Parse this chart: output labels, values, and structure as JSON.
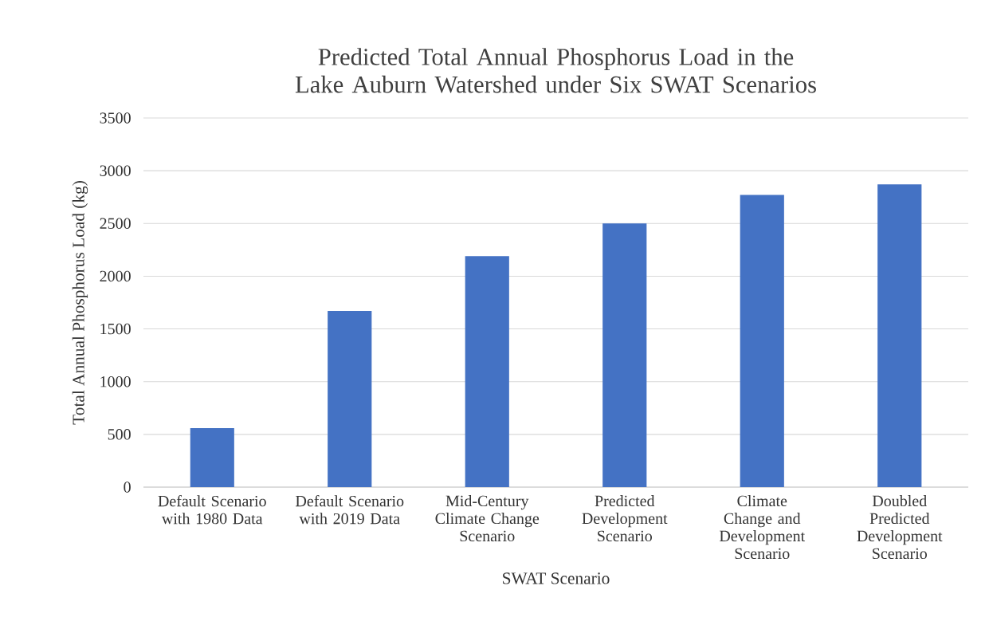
{
  "chart_data": {
    "type": "bar",
    "title": "Predicted Total Annual Phosphorus Load in the Lake Auburn Watershed under Six SWAT Scenarios",
    "xlabel": "SWAT Scenario",
    "ylabel": "Total Annual Phosphorus Load (kg)",
    "categories": [
      "Default Scenario with 1980 Data",
      "Default Scenario with 2019 Data",
      "Mid-Century Climate Change Scenario",
      "Predicted Development Scenario",
      "Climate Change and Development Scenario",
      "Doubled Predicted Development Scenario"
    ],
    "values": [
      560,
      1670,
      2190,
      2500,
      2770,
      2870
    ],
    "color": "#4472c4",
    "ylim": [
      0,
      3500
    ],
    "yticks": [
      0,
      500,
      1000,
      1500,
      2000,
      2500,
      3000,
      3500
    ],
    "grid": "y"
  }
}
